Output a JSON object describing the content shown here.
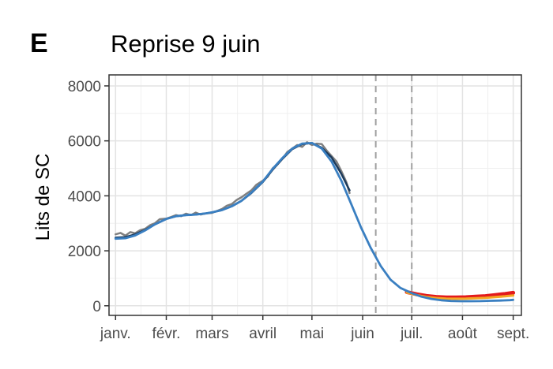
{
  "panel_label": "E",
  "chart_data": {
    "type": "line",
    "title": "Reprise 9 juin",
    "xlabel": "",
    "ylabel": "Lits de SC",
    "x_ticks": [
      "janv.",
      "févr.",
      "mars",
      "avril",
      "mai",
      "juin",
      "juil.",
      "août",
      "sept."
    ],
    "x_tick_dates": [
      "2021-01-01",
      "2021-02-01",
      "2021-03-01",
      "2021-04-01",
      "2021-05-01",
      "2021-06-01",
      "2021-07-01",
      "2021-08-01",
      "2021-09-01"
    ],
    "xlim": [
      "2020-12-28",
      "2021-09-06"
    ],
    "y_ticks": [
      0,
      2000,
      4000,
      6000,
      8000
    ],
    "ylim": [
      -350,
      8400
    ],
    "grid": true,
    "vlines": [
      "2021-06-09",
      "2021-07-01"
    ],
    "colors": {
      "observed": "#808080",
      "fit": "#1b3a5c",
      "band_high": "#e31a1c",
      "band_mid": "#f5a623",
      "projection": "#3a7fc1",
      "vline": "#a0a0a0"
    },
    "series": [
      {
        "key": "observed",
        "x": [
          "2021-01-01",
          "2021-01-04",
          "2021-01-07",
          "2021-01-10",
          "2021-01-13",
          "2021-01-16",
          "2021-01-19",
          "2021-01-22",
          "2021-01-25",
          "2021-01-28",
          "2021-02-01",
          "2021-02-04",
          "2021-02-07",
          "2021-02-10",
          "2021-02-13",
          "2021-02-16",
          "2021-02-19",
          "2021-02-22",
          "2021-02-25",
          "2021-03-01",
          "2021-03-04",
          "2021-03-07",
          "2021-03-10",
          "2021-03-13",
          "2021-03-16",
          "2021-03-19",
          "2021-03-22",
          "2021-03-25",
          "2021-03-28",
          "2021-04-01",
          "2021-04-04",
          "2021-04-07",
          "2021-04-10",
          "2021-04-13",
          "2021-04-16",
          "2021-04-19",
          "2021-04-22",
          "2021-04-25",
          "2021-04-28",
          "2021-05-01",
          "2021-05-04",
          "2021-05-07",
          "2021-05-10",
          "2021-05-13",
          "2021-05-16",
          "2021-05-19",
          "2021-05-22",
          "2021-05-24"
        ],
        "y": [
          2600,
          2650,
          2550,
          2680,
          2640,
          2750,
          2800,
          2930,
          3000,
          3150,
          3170,
          3230,
          3300,
          3260,
          3350,
          3300,
          3390,
          3320,
          3360,
          3380,
          3450,
          3520,
          3640,
          3700,
          3850,
          3950,
          4080,
          4200,
          4400,
          4550,
          4700,
          5000,
          5150,
          5350,
          5600,
          5720,
          5850,
          5780,
          5950,
          5850,
          5900,
          5880,
          5650,
          5450,
          5250,
          4900,
          4500,
          4100
        ]
      },
      {
        "key": "fit",
        "x": [
          "2021-01-01",
          "2021-01-07",
          "2021-01-13",
          "2021-01-19",
          "2021-01-25",
          "2021-02-01",
          "2021-02-07",
          "2021-02-13",
          "2021-02-19",
          "2021-02-25",
          "2021-03-01",
          "2021-03-07",
          "2021-03-13",
          "2021-03-19",
          "2021-03-25",
          "2021-04-01",
          "2021-04-07",
          "2021-04-13",
          "2021-04-19",
          "2021-04-25",
          "2021-05-01",
          "2021-05-07",
          "2021-05-13",
          "2021-05-19",
          "2021-05-24"
        ],
        "y": [
          2480,
          2500,
          2600,
          2760,
          2960,
          3160,
          3260,
          3300,
          3320,
          3360,
          3400,
          3480,
          3620,
          3820,
          4100,
          4500,
          4950,
          5350,
          5700,
          5880,
          5920,
          5750,
          5400,
          4800,
          4200
        ]
      },
      {
        "key": "band_high",
        "x": [
          "2021-06-28",
          "2021-07-04",
          "2021-07-10",
          "2021-07-16",
          "2021-07-22",
          "2021-07-28",
          "2021-08-03",
          "2021-08-09",
          "2021-08-15",
          "2021-08-21",
          "2021-08-27",
          "2021-09-01"
        ],
        "y": [
          500,
          420,
          360,
          320,
          300,
          300,
          310,
          330,
          350,
          390,
          430,
          470
        ]
      },
      {
        "key": "band_mid",
        "x": [
          "2021-06-28",
          "2021-07-04",
          "2021-07-10",
          "2021-07-16",
          "2021-07-22",
          "2021-07-28",
          "2021-08-03",
          "2021-08-09",
          "2021-08-15",
          "2021-08-21",
          "2021-08-27",
          "2021-09-01"
        ],
        "y": [
          480,
          390,
          320,
          280,
          260,
          255,
          260,
          275,
          290,
          315,
          345,
          375
        ]
      },
      {
        "key": "projection",
        "x": [
          "2021-01-01",
          "2021-01-07",
          "2021-01-13",
          "2021-01-19",
          "2021-01-25",
          "2021-02-01",
          "2021-02-07",
          "2021-02-13",
          "2021-02-19",
          "2021-02-25",
          "2021-03-01",
          "2021-03-07",
          "2021-03-13",
          "2021-03-19",
          "2021-03-25",
          "2021-04-01",
          "2021-04-07",
          "2021-04-13",
          "2021-04-19",
          "2021-04-25",
          "2021-05-01",
          "2021-05-07",
          "2021-05-13",
          "2021-05-19",
          "2021-05-25",
          "2021-05-31",
          "2021-06-06",
          "2021-06-12",
          "2021-06-18",
          "2021-06-24",
          "2021-07-01",
          "2021-07-07",
          "2021-07-13",
          "2021-07-19",
          "2021-07-25",
          "2021-07-31",
          "2021-08-06",
          "2021-08-12",
          "2021-08-18",
          "2021-08-24",
          "2021-08-30",
          "2021-09-01"
        ],
        "y": [
          2440,
          2460,
          2560,
          2740,
          2960,
          3160,
          3260,
          3300,
          3320,
          3360,
          3400,
          3480,
          3620,
          3820,
          4120,
          4520,
          4980,
          5380,
          5720,
          5900,
          5920,
          5720,
          5250,
          4550,
          3700,
          2850,
          2100,
          1450,
          950,
          650,
          460,
          330,
          250,
          200,
          175,
          165,
          165,
          170,
          180,
          190,
          205,
          215
        ]
      }
    ]
  }
}
